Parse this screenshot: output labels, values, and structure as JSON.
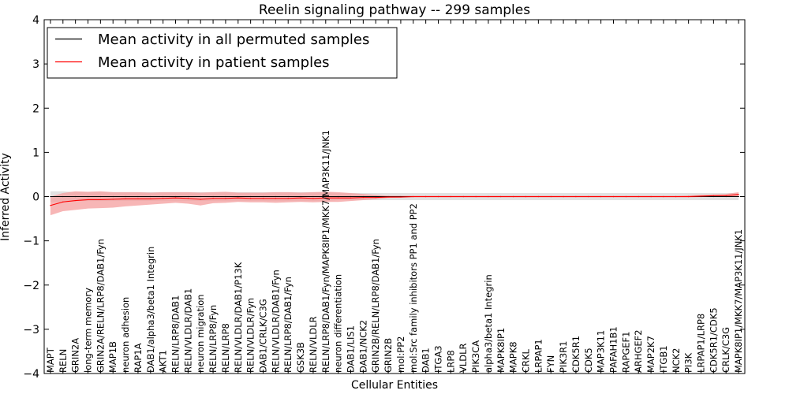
{
  "chart_data": {
    "type": "line",
    "title": "Reelin signaling pathway -- 299 samples",
    "xlabel": "Cellular Entities",
    "ylabel": "Inferred Activity",
    "ylim": [
      -4,
      4
    ],
    "yticks": [
      -4,
      -3,
      -2,
      -1,
      0,
      1,
      2,
      3,
      4
    ],
    "ytick_labels": [
      "−4",
      "−3",
      "−2",
      "−1",
      "0",
      "1",
      "2",
      "3",
      "4"
    ],
    "grid": false,
    "legend_position": "top-left",
    "categories": [
      "MAPT",
      "RELN",
      "GRIN2A",
      "long-term memory",
      "GRIN2A/RELN/LRP8/DAB1/Fyn",
      "MAP1B",
      "neuron adhesion",
      "RAP1A",
      "DAB1/alpha3/beta1 Integrin",
      "AKT1",
      "RELN/LRP8/DAB1",
      "RELN/VLDLR/DAB1",
      "neuron migration",
      "RELN/LRP8/Fyn",
      "RELN/LRP8",
      "RELN/VLDLR/DAB1/P13K",
      "RELN/VLDLR/Fyn",
      "DAB1/CRLK/C3G",
      "RELN/VLDLR/DAB1/Fyn",
      "RELN/LRP8/DAB1/Fyn",
      "GSK3B",
      "RELN/VLDLR",
      "RELN/LRP8/DAB1/Fyn/MAPK8IP1/MKK7/MAP3K11/JNK1",
      "neuron differentiation",
      "DAB1/LIS1",
      "DAB1/NCK2",
      "GRIN2B/RELN/LRP8/DAB1/Fyn",
      "GRIN2B",
      "mol:PP2",
      "mol:Src family inhibitors PP1 and PP2",
      "DAB1",
      "ITGA3",
      "LRP8",
      "VLDLR",
      "PIK3CA",
      "alpha3/beta1 Integrin",
      "MAPK8IP1",
      "MAPK8",
      "CRKL",
      "LRPAP1",
      "FYN",
      "PIK3R1",
      "CDK5R1",
      "CDK5",
      "MAP3K11",
      "PAFAH1B1",
      "RAPGEF1",
      "ARHGEF2",
      "MAP2K7",
      "ITGB1",
      "NCK2",
      "PI3K",
      "LRPAP1/LRP8",
      "CDK5R1/CDK5",
      "CRLK/C3G",
      "MAPK8IP1/MKK7/MAP3K11/JNK1"
    ],
    "series": [
      {
        "name": "Mean activity in all permuted samples",
        "color": "#000000",
        "values": [
          0.0,
          0.0,
          0.0,
          0.0,
          0.0,
          0.0,
          0.0,
          0.0,
          0.0,
          0.0,
          0.0,
          0.0,
          0.0,
          0.0,
          0.0,
          0.0,
          0.0,
          0.0,
          0.0,
          0.0,
          0.0,
          0.0,
          0.0,
          0.0,
          0.0,
          0.0,
          0.0,
          0.0,
          0.0,
          0.0,
          0.0,
          0.0,
          0.0,
          0.0,
          0.0,
          0.0,
          0.0,
          0.0,
          0.0,
          0.0,
          0.0,
          0.0,
          0.0,
          0.0,
          0.0,
          0.0,
          0.0,
          0.0,
          0.0,
          0.0,
          0.0,
          0.0,
          0.0,
          0.0,
          0.0,
          0.0
        ],
        "band": {
          "color": "#c8c8c8",
          "lower": [
            -0.12,
            -0.12,
            -0.1,
            -0.1,
            -0.1,
            -0.1,
            -0.1,
            -0.1,
            -0.1,
            -0.1,
            -0.1,
            -0.1,
            -0.1,
            -0.1,
            -0.1,
            -0.1,
            -0.1,
            -0.1,
            -0.1,
            -0.1,
            -0.1,
            -0.1,
            -0.1,
            -0.08,
            -0.08,
            -0.08,
            -0.08,
            -0.08,
            -0.08,
            -0.08,
            -0.08,
            -0.08,
            -0.08,
            -0.08,
            -0.08,
            -0.08,
            -0.08,
            -0.08,
            -0.08,
            -0.08,
            -0.08,
            -0.08,
            -0.08,
            -0.08,
            -0.08,
            -0.08,
            -0.08,
            -0.08,
            -0.08,
            -0.08,
            -0.08,
            -0.08,
            -0.08,
            -0.08,
            -0.08,
            -0.08
          ],
          "upper": [
            0.12,
            0.12,
            0.1,
            0.1,
            0.1,
            0.1,
            0.1,
            0.1,
            0.1,
            0.1,
            0.1,
            0.1,
            0.1,
            0.1,
            0.1,
            0.1,
            0.1,
            0.1,
            0.1,
            0.1,
            0.1,
            0.1,
            0.1,
            0.08,
            0.08,
            0.08,
            0.08,
            0.08,
            0.08,
            0.08,
            0.08,
            0.08,
            0.08,
            0.08,
            0.08,
            0.08,
            0.08,
            0.08,
            0.08,
            0.08,
            0.08,
            0.08,
            0.08,
            0.08,
            0.08,
            0.08,
            0.08,
            0.08,
            0.08,
            0.08,
            0.08,
            0.08,
            0.08,
            0.08,
            0.08,
            0.08
          ]
        }
      },
      {
        "name": "Mean activity in patient samples",
        "color": "#ff0000",
        "values": [
          -0.2,
          -0.12,
          -0.09,
          -0.07,
          -0.07,
          -0.06,
          -0.05,
          -0.05,
          -0.05,
          -0.04,
          -0.03,
          -0.04,
          -0.06,
          -0.04,
          -0.04,
          -0.03,
          -0.04,
          -0.04,
          -0.04,
          -0.04,
          -0.03,
          -0.04,
          -0.03,
          -0.03,
          -0.03,
          -0.02,
          -0.02,
          -0.01,
          -0.01,
          0.0,
          0.0,
          0.0,
          0.0,
          0.0,
          0.0,
          0.0,
          0.0,
          0.0,
          0.0,
          0.0,
          0.0,
          0.0,
          0.0,
          0.0,
          0.0,
          0.0,
          0.0,
          0.0,
          0.0,
          0.0,
          0.0,
          0.0,
          0.01,
          0.02,
          0.02,
          0.05
        ],
        "band": {
          "color": "#f49d9d",
          "lower": [
            -0.42,
            -0.33,
            -0.3,
            -0.27,
            -0.26,
            -0.25,
            -0.22,
            -0.2,
            -0.18,
            -0.16,
            -0.14,
            -0.16,
            -0.2,
            -0.15,
            -0.14,
            -0.12,
            -0.13,
            -0.13,
            -0.14,
            -0.13,
            -0.12,
            -0.13,
            -0.12,
            -0.12,
            -0.1,
            -0.08,
            -0.06,
            -0.03,
            -0.02,
            -0.02,
            -0.02,
            -0.02,
            -0.02,
            -0.02,
            -0.02,
            -0.02,
            -0.02,
            -0.02,
            -0.02,
            -0.02,
            -0.02,
            -0.02,
            -0.02,
            -0.02,
            -0.02,
            -0.02,
            -0.02,
            -0.02,
            -0.02,
            -0.02,
            -0.02,
            -0.02,
            -0.01,
            0.0,
            0.0,
            0.01
          ],
          "upper": [
            0.0,
            0.08,
            0.12,
            0.11,
            0.12,
            0.1,
            0.1,
            0.1,
            0.09,
            0.1,
            0.1,
            0.1,
            0.09,
            0.1,
            0.11,
            0.09,
            0.09,
            0.09,
            0.1,
            0.1,
            0.09,
            0.1,
            0.11,
            0.1,
            0.08,
            0.06,
            0.04,
            0.02,
            0.02,
            0.02,
            0.02,
            0.02,
            0.02,
            0.02,
            0.02,
            0.02,
            0.02,
            0.02,
            0.02,
            0.02,
            0.02,
            0.02,
            0.02,
            0.02,
            0.02,
            0.02,
            0.02,
            0.02,
            0.02,
            0.02,
            0.02,
            0.03,
            0.04,
            0.05,
            0.06,
            0.1
          ]
        }
      }
    ]
  }
}
